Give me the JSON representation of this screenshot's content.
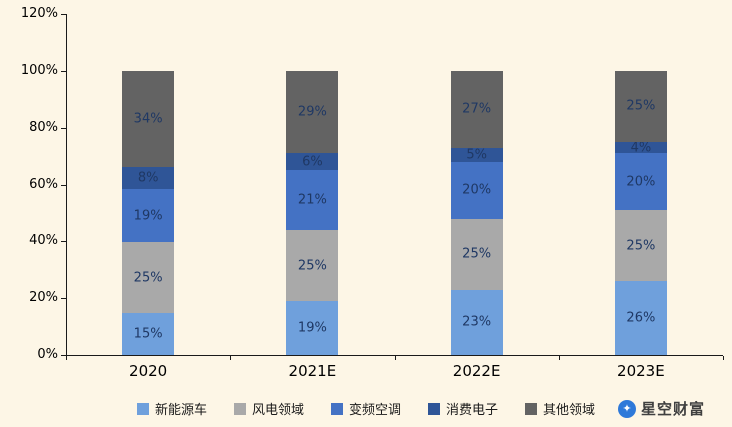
{
  "chart_data": {
    "type": "bar",
    "variant": "stacked-100",
    "categories": [
      "2020",
      "2021E",
      "2022E",
      "2023E"
    ],
    "series": [
      {
        "name": "新能源车",
        "color": "#6FA0DC",
        "values": [
          15,
          19,
          23,
          26
        ]
      },
      {
        "name": "风电领域",
        "color": "#A9A9A9",
        "values": [
          25,
          25,
          25,
          25
        ]
      },
      {
        "name": "变频空调",
        "color": "#4472C4",
        "values": [
          19,
          21,
          20,
          20
        ]
      },
      {
        "name": "消费电子",
        "color": "#2F5597",
        "values": [
          8,
          6,
          5,
          4
        ]
      },
      {
        "name": "其他领域",
        "color": "#636363",
        "values": [
          34,
          29,
          27,
          25
        ]
      }
    ],
    "y_ticks": [
      "0%",
      "20%",
      "40%",
      "60%",
      "80%",
      "100%",
      "120%"
    ],
    "ylim": [
      0,
      120
    ],
    "y_tick_step": 20,
    "label_suffix": "%",
    "legend_position": "bottom",
    "grid": false,
    "title": "",
    "xlabel": "",
    "ylabel": ""
  },
  "watermark": {
    "logo": "✦",
    "text": "星空财富"
  },
  "colors": {
    "background": "#FDF6E6",
    "axis": "#1A1A1A",
    "data_label": "#1F3864"
  }
}
